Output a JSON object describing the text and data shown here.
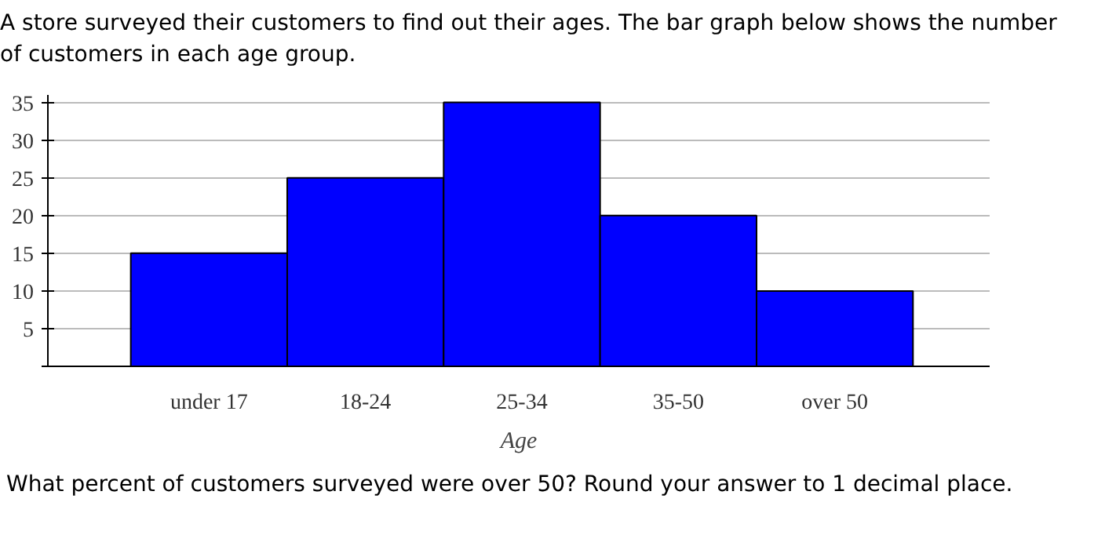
{
  "chart_data": {
    "type": "bar",
    "title": "A store surveyed their customers to find out their ages. The bar graph below shows the number of customers in each age group.",
    "categories": [
      "under 17",
      "18-24",
      "25-34",
      "35-50",
      "over 50"
    ],
    "values": [
      15,
      25,
      35,
      20,
      10
    ],
    "color": "#0000ff",
    "xlabel": "Age",
    "ylim": [
      0,
      36
    ],
    "yticks": [
      {
        "value": 0,
        "label": null
      },
      5,
      10,
      15,
      20,
      25,
      30,
      35
    ],
    "grid": "y",
    "annotations": [
      "What percent of customers surveyed were over 50? Round your answer to 1 decimal place."
    ]
  }
}
